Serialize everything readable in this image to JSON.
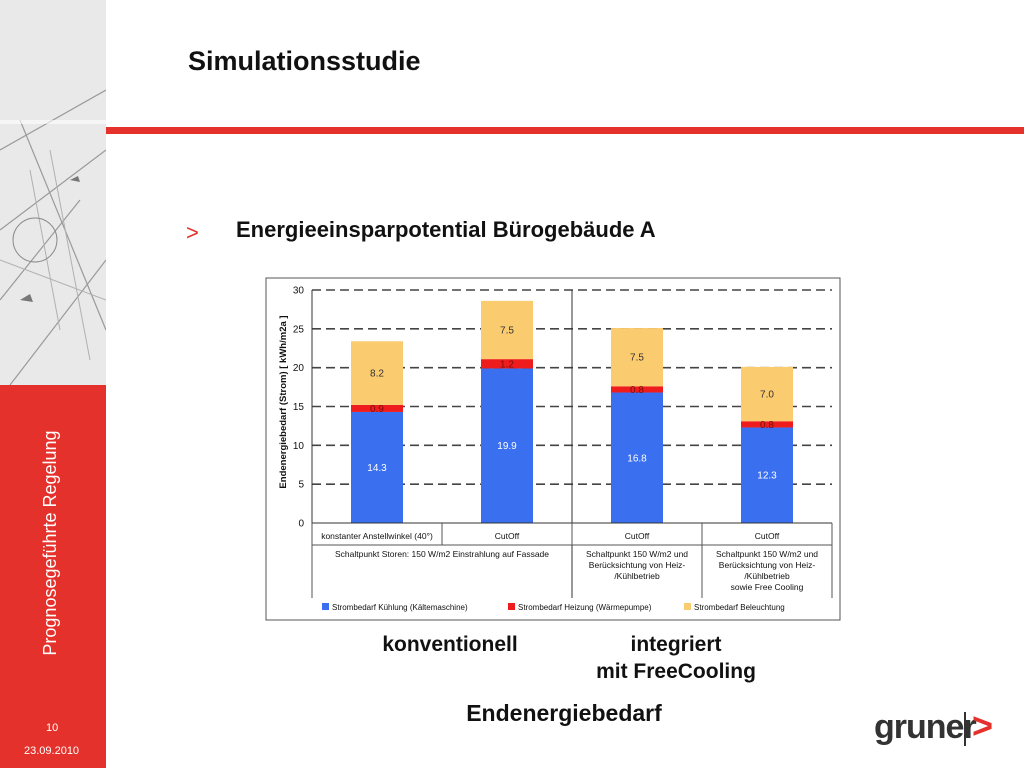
{
  "slide": {
    "title": "Simulationsstudie",
    "bullet_marker": ">",
    "bullet_text": "Energieeinsparpotential Bürogebäude A",
    "sidebar_label": "Prognosegeführte Regelung",
    "page_number": "10",
    "date": "23.09.2010",
    "caption_left": "konventionell",
    "caption_right_line1": "integriert",
    "caption_right_line2": "mit FreeCooling",
    "caption_bottom": "Endenergiebedarf",
    "logo_text": "gruner",
    "logo_mark": ">"
  },
  "colors": {
    "accent_red": "#e4312b",
    "kuehlung": "#3a6ff0",
    "heizung": "#ee1c1c",
    "beleuchtung": "#fbcb6f"
  },
  "chart_data": {
    "type": "bar",
    "stacked": true,
    "ylabel": "Endenergiebedarf (Strom) [ kWh/m2a ]",
    "ylim": [
      0,
      30
    ],
    "yticks": [
      0,
      5,
      10,
      15,
      20,
      25,
      30
    ],
    "grid": "dashed horizontal",
    "legend_position": "bottom",
    "categories": [
      "konstanter Anstellwinkel (40°)",
      "CutOff",
      "CutOff",
      "CutOff"
    ],
    "group_labels": [
      [
        "Schaltpunkt Storen: 150 W/m2 Einstrahlung auf Fassade"
      ],
      [
        "Schaltpunkt 150 W/m2 und",
        "Berücksichtung von Heiz-",
        "/Kühlbetrieb"
      ],
      [
        "Schaltpunkt 150 W/m2 und",
        "Berücksichtung von Heiz-",
        "/Kühlbetrieb",
        "sowie Free Cooling"
      ]
    ],
    "series": [
      {
        "name": "Strombedarf Kühlung (Kältemaschine)",
        "values": [
          14.3,
          19.9,
          16.8,
          12.3
        ],
        "labels": [
          "14.3",
          "19.9",
          "16.8",
          "12.3"
        ]
      },
      {
        "name": "Strombedarf Heizung (Wärmepumpe)",
        "values": [
          0.9,
          1.2,
          0.8,
          0.8
        ],
        "labels": [
          "0.9",
          "1.2",
          "0.8",
          "0.8"
        ]
      },
      {
        "name": "Strombedarf Beleuchtung",
        "values": [
          8.2,
          7.5,
          7.5,
          7.0
        ],
        "labels": [
          "8.2",
          "7.5",
          "7.5",
          "7.0"
        ]
      }
    ]
  }
}
